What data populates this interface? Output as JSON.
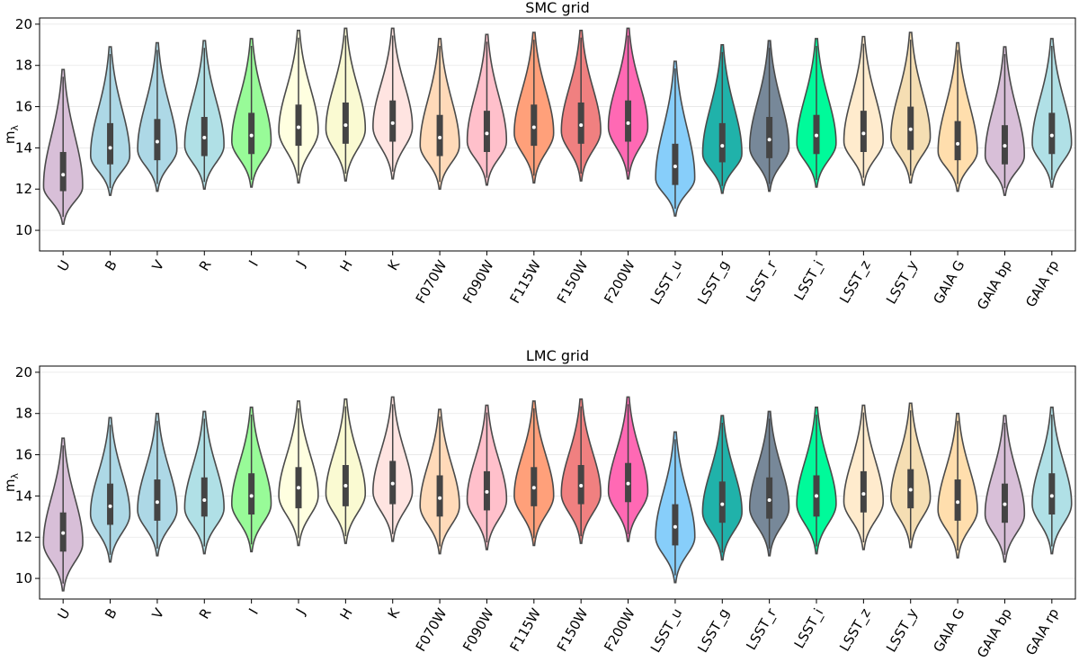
{
  "chart_data": [
    {
      "type": "violin",
      "title": "SMC grid",
      "xlabel": "",
      "ylabel": "m",
      "ylabel_subscript": "λ",
      "ylim": [
        9,
        20.3
      ],
      "yticks": [
        10,
        12,
        14,
        16,
        18,
        20
      ],
      "grid": true,
      "series": [
        {
          "name": "U",
          "color": "#d8bfd8",
          "min": 10.3,
          "max": 17.8,
          "q1": 11.9,
          "median": 12.7,
          "q3": 13.8,
          "mode": 12.1
        },
        {
          "name": "B",
          "color": "#add8e6",
          "min": 11.7,
          "max": 18.9,
          "q1": 13.2,
          "median": 14.0,
          "q3": 15.2,
          "mode": 13.6
        },
        {
          "name": "V",
          "color": "#add8e6",
          "min": 11.9,
          "max": 19.1,
          "q1": 13.4,
          "median": 14.3,
          "q3": 15.4,
          "mode": 13.9
        },
        {
          "name": "R",
          "color": "#b0e0e6",
          "min": 12.0,
          "max": 19.2,
          "q1": 13.6,
          "median": 14.5,
          "q3": 15.5,
          "mode": 14.1
        },
        {
          "name": "I",
          "color": "#98fb98",
          "min": 12.1,
          "max": 19.3,
          "q1": 13.7,
          "median": 14.6,
          "q3": 15.7,
          "mode": 14.3
        },
        {
          "name": "J",
          "color": "#ffffe0",
          "min": 12.3,
          "max": 19.7,
          "q1": 14.1,
          "median": 15.0,
          "q3": 16.1,
          "mode": 14.8
        },
        {
          "name": "H",
          "color": "#fafad2",
          "min": 12.4,
          "max": 19.8,
          "q1": 14.2,
          "median": 15.1,
          "q3": 16.2,
          "mode": 14.9
        },
        {
          "name": "K",
          "color": "#ffe4e1",
          "min": 12.5,
          "max": 19.8,
          "q1": 14.3,
          "median": 15.2,
          "q3": 16.3,
          "mode": 15.0
        },
        {
          "name": "F070W",
          "color": "#ffdab9",
          "min": 12.0,
          "max": 19.3,
          "q1": 13.6,
          "median": 14.5,
          "q3": 15.6,
          "mode": 14.1
        },
        {
          "name": "F090W",
          "color": "#ffc0cb",
          "min": 12.2,
          "max": 19.5,
          "q1": 13.8,
          "median": 14.7,
          "q3": 15.8,
          "mode": 14.3
        },
        {
          "name": "F115W",
          "color": "#ffa07a",
          "min": 12.3,
          "max": 19.6,
          "q1": 14.1,
          "median": 15.0,
          "q3": 16.1,
          "mode": 14.7
        },
        {
          "name": "F150W",
          "color": "#f08080",
          "min": 12.4,
          "max": 19.7,
          "q1": 14.2,
          "median": 15.1,
          "q3": 16.2,
          "mode": 14.8
        },
        {
          "name": "F200W",
          "color": "#ff69b4",
          "min": 12.5,
          "max": 19.8,
          "q1": 14.3,
          "median": 15.2,
          "q3": 16.3,
          "mode": 15.0
        },
        {
          "name": "LSST_u",
          "color": "#87cefa",
          "min": 10.7,
          "max": 18.2,
          "q1": 12.2,
          "median": 13.1,
          "q3": 14.2,
          "mode": 12.5
        },
        {
          "name": "LSST_g",
          "color": "#20b2aa",
          "min": 11.8,
          "max": 19.0,
          "q1": 13.3,
          "median": 14.1,
          "q3": 15.2,
          "mode": 13.7
        },
        {
          "name": "LSST_r",
          "color": "#778899",
          "min": 11.9,
          "max": 19.2,
          "q1": 13.5,
          "median": 14.4,
          "q3": 15.5,
          "mode": 14.0
        },
        {
          "name": "LSST_i",
          "color": "#00fa9a",
          "min": 12.1,
          "max": 19.3,
          "q1": 13.7,
          "median": 14.6,
          "q3": 15.6,
          "mode": 14.2
        },
        {
          "name": "LSST_z",
          "color": "#ffebcd",
          "min": 12.2,
          "max": 19.4,
          "q1": 13.8,
          "median": 14.7,
          "q3": 15.8,
          "mode": 14.3
        },
        {
          "name": "LSST_y",
          "color": "#f5deb3",
          "min": 12.3,
          "max": 19.6,
          "q1": 13.9,
          "median": 14.9,
          "q3": 16.0,
          "mode": 14.5
        },
        {
          "name": "GAIA G",
          "color": "#ffdead",
          "min": 11.9,
          "max": 19.1,
          "q1": 13.4,
          "median": 14.2,
          "q3": 15.3,
          "mode": 13.8
        },
        {
          "name": "GAIA bp",
          "color": "#d8bfd8",
          "min": 11.7,
          "max": 18.9,
          "q1": 13.2,
          "median": 14.1,
          "q3": 15.1,
          "mode": 13.6
        },
        {
          "name": "GAIA rp",
          "color": "#b0e0e6",
          "min": 12.1,
          "max": 19.3,
          "q1": 13.7,
          "median": 14.6,
          "q3": 15.7,
          "mode": 14.2
        }
      ]
    },
    {
      "type": "violin",
      "title": "LMC grid",
      "xlabel": "",
      "ylabel": "m",
      "ylabel_subscript": "λ",
      "ylim": [
        9,
        20.3
      ],
      "yticks": [
        10,
        12,
        14,
        16,
        18,
        20
      ],
      "grid": true,
      "series": [
        {
          "name": "U",
          "color": "#d8bfd8",
          "min": 9.4,
          "max": 16.8,
          "q1": 11.3,
          "median": 12.2,
          "q3": 13.2,
          "mode": 11.7
        },
        {
          "name": "B",
          "color": "#add8e6",
          "min": 10.8,
          "max": 17.8,
          "q1": 12.6,
          "median": 13.5,
          "q3": 14.6,
          "mode": 13.1
        },
        {
          "name": "V",
          "color": "#add8e6",
          "min": 11.1,
          "max": 18.0,
          "q1": 12.8,
          "median": 13.7,
          "q3": 14.8,
          "mode": 13.3
        },
        {
          "name": "R",
          "color": "#b0e0e6",
          "min": 11.2,
          "max": 18.1,
          "q1": 13.0,
          "median": 13.8,
          "q3": 14.9,
          "mode": 13.4
        },
        {
          "name": "I",
          "color": "#98fb98",
          "min": 11.3,
          "max": 18.3,
          "q1": 13.1,
          "median": 14.0,
          "q3": 15.1,
          "mode": 13.6
        },
        {
          "name": "J",
          "color": "#ffffe0",
          "min": 11.6,
          "max": 18.6,
          "q1": 13.4,
          "median": 14.4,
          "q3": 15.4,
          "mode": 14.0
        },
        {
          "name": "H",
          "color": "#fafad2",
          "min": 11.7,
          "max": 18.7,
          "q1": 13.5,
          "median": 14.5,
          "q3": 15.5,
          "mode": 14.1
        },
        {
          "name": "K",
          "color": "#ffe4e1",
          "min": 11.8,
          "max": 18.8,
          "q1": 13.6,
          "median": 14.6,
          "q3": 15.7,
          "mode": 14.2
        },
        {
          "name": "F070W",
          "color": "#ffdab9",
          "min": 11.2,
          "max": 18.2,
          "q1": 13.0,
          "median": 13.9,
          "q3": 15.0,
          "mode": 13.5
        },
        {
          "name": "F090W",
          "color": "#ffc0cb",
          "min": 11.4,
          "max": 18.4,
          "q1": 13.3,
          "median": 14.2,
          "q3": 15.2,
          "mode": 13.8
        },
        {
          "name": "F115W",
          "color": "#ffa07a",
          "min": 11.6,
          "max": 18.6,
          "q1": 13.5,
          "median": 14.4,
          "q3": 15.4,
          "mode": 14.0
        },
        {
          "name": "F150W",
          "color": "#f08080",
          "min": 11.7,
          "max": 18.7,
          "q1": 13.6,
          "median": 14.5,
          "q3": 15.5,
          "mode": 14.1
        },
        {
          "name": "F200W",
          "color": "#ff69b4",
          "min": 11.8,
          "max": 18.8,
          "q1": 13.7,
          "median": 14.6,
          "q3": 15.6,
          "mode": 14.2
        },
        {
          "name": "LSST_u",
          "color": "#87cefa",
          "min": 9.8,
          "max": 17.1,
          "q1": 11.6,
          "median": 12.5,
          "q3": 13.6,
          "mode": 12.0
        },
        {
          "name": "LSST_g",
          "color": "#20b2aa",
          "min": 10.9,
          "max": 17.9,
          "q1": 12.7,
          "median": 13.6,
          "q3": 14.7,
          "mode": 13.2
        },
        {
          "name": "LSST_r",
          "color": "#778899",
          "min": 11.1,
          "max": 18.1,
          "q1": 12.9,
          "median": 13.8,
          "q3": 14.9,
          "mode": 13.4
        },
        {
          "name": "LSST_i",
          "color": "#00fa9a",
          "min": 11.2,
          "max": 18.3,
          "q1": 13.0,
          "median": 14.0,
          "q3": 15.0,
          "mode": 13.6
        },
        {
          "name": "LSST_z",
          "color": "#ffebcd",
          "min": 11.4,
          "max": 18.4,
          "q1": 13.2,
          "median": 14.1,
          "q3": 15.2,
          "mode": 13.7
        },
        {
          "name": "LSST_y",
          "color": "#f5deb3",
          "min": 11.5,
          "max": 18.5,
          "q1": 13.4,
          "median": 14.3,
          "q3": 15.3,
          "mode": 13.9
        },
        {
          "name": "GAIA G",
          "color": "#ffdead",
          "min": 11.0,
          "max": 18.0,
          "q1": 12.8,
          "median": 13.7,
          "q3": 14.8,
          "mode": 13.3
        },
        {
          "name": "GAIA bp",
          "color": "#d8bfd8",
          "min": 10.8,
          "max": 17.9,
          "q1": 12.7,
          "median": 13.6,
          "q3": 14.6,
          "mode": 13.1
        },
        {
          "name": "GAIA rp",
          "color": "#b0e0e6",
          "min": 11.2,
          "max": 18.3,
          "q1": 13.1,
          "median": 14.0,
          "q3": 15.1,
          "mode": 13.6
        }
      ]
    }
  ]
}
